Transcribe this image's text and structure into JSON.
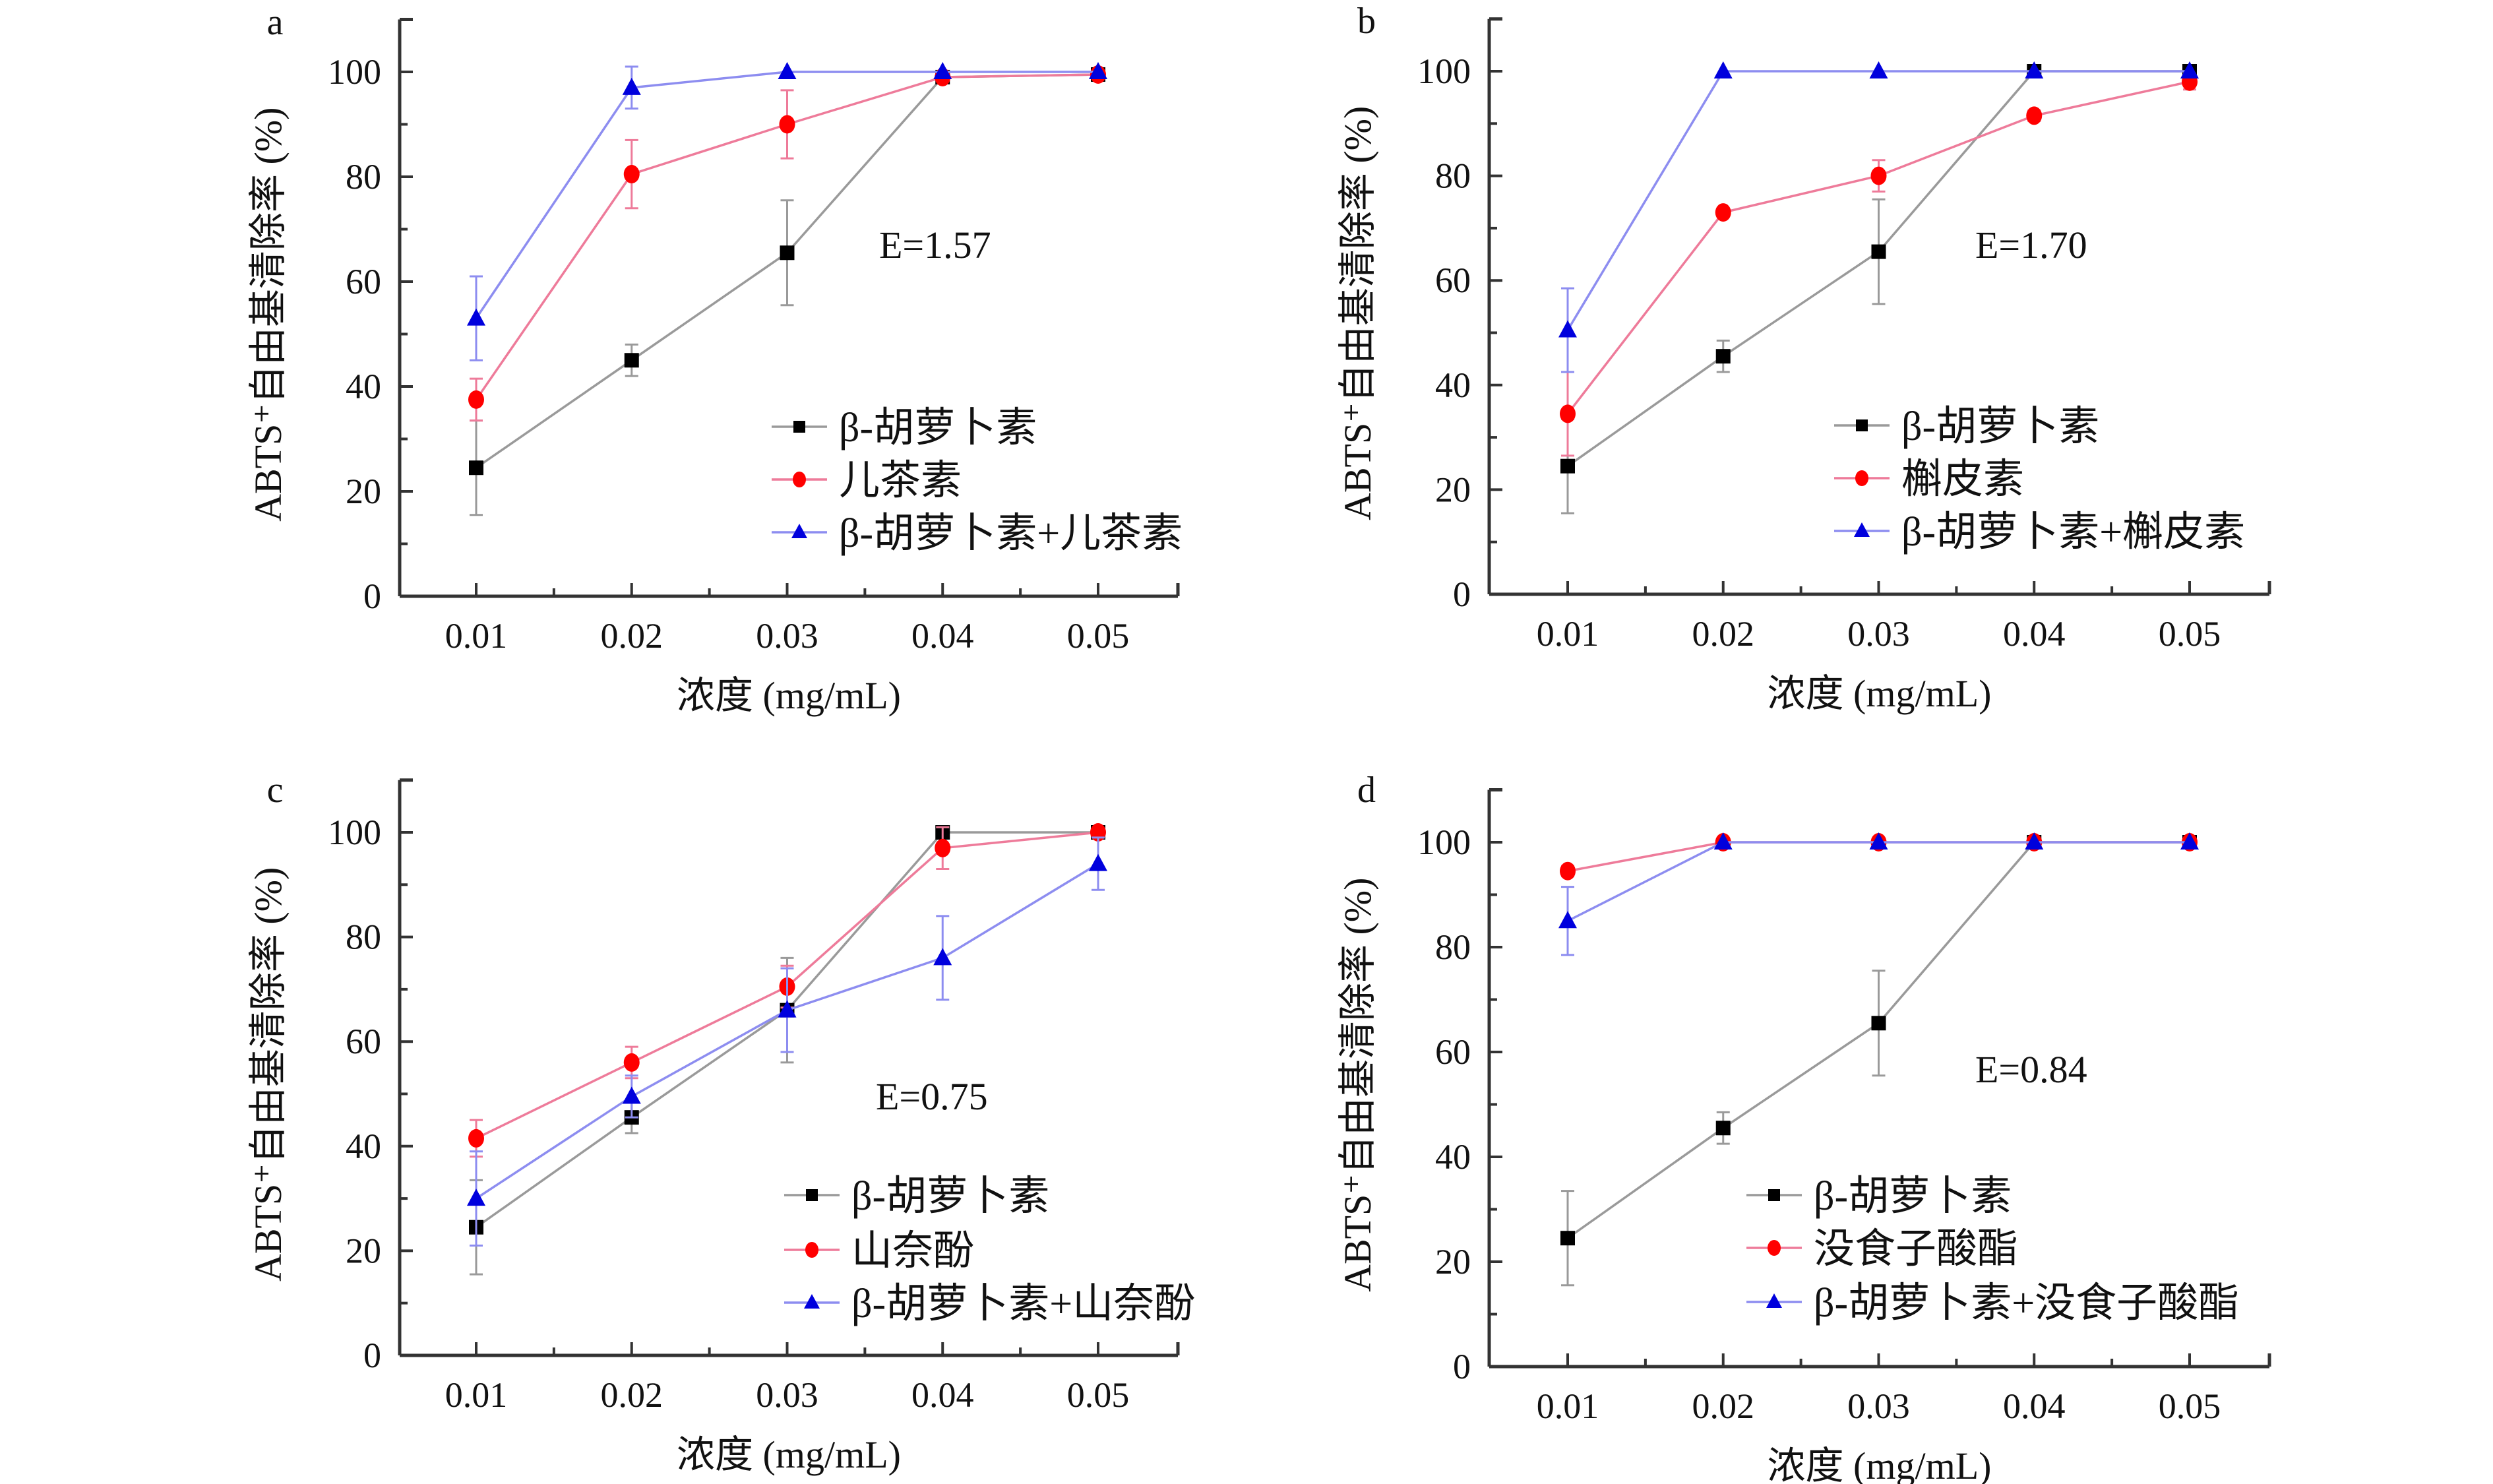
{
  "chart_data": [
    {
      "type": "line",
      "panel_label": "a",
      "annotation": "E=1.57",
      "xlabel": "浓度 (mg/mL)",
      "ylabel": "ABTS⁺自由基清除率 (%)",
      "x": [
        "0.01",
        "0.02",
        "0.03",
        "0.04",
        "0.05"
      ],
      "yticks": [
        "0",
        "20",
        "40",
        "60",
        "80",
        "100"
      ],
      "ylim": [
        0,
        110
      ],
      "legend_position": "bottom-right",
      "series": [
        {
          "name": "β-胡萝卜素",
          "color": "#000000",
          "marker": "square",
          "values": [
            24.5,
            45,
            65.5,
            99,
            99.5
          ],
          "error": [
            9,
            3,
            10,
            1,
            0.5
          ]
        },
        {
          "name": "儿茶素",
          "color": "#ff0000",
          "marker": "circle",
          "values": [
            37.5,
            80.5,
            90,
            99,
            99.5
          ],
          "error": [
            4,
            6.5,
            6.5,
            0.5,
            0.5
          ]
        },
        {
          "name": "β-胡萝卜素+儿茶素",
          "color": "#0000dd",
          "marker": "triangle",
          "values": [
            53,
            97,
            100,
            100,
            100
          ],
          "error": [
            8,
            4,
            0,
            0,
            0
          ]
        }
      ]
    },
    {
      "type": "line",
      "panel_label": "b",
      "annotation": "E=1.70",
      "xlabel": "浓度 (mg/mL)",
      "ylabel": "ABTS⁺自由基清除率 (%)",
      "x": [
        "0.01",
        "0.02",
        "0.03",
        "0.04",
        "0.05"
      ],
      "yticks": [
        "0",
        "20",
        "40",
        "60",
        "80",
        "100"
      ],
      "ylim": [
        0,
        110
      ],
      "legend_position": "bottom-right",
      "series": [
        {
          "name": "β-胡萝卜素",
          "color": "#000000",
          "marker": "square",
          "values": [
            24.5,
            45.5,
            65.5,
            100,
            100
          ],
          "error": [
            9,
            3,
            10,
            0.5,
            0.5
          ]
        },
        {
          "name": "槲皮素",
          "color": "#ff0000",
          "marker": "circle",
          "values": [
            34.5,
            73,
            80,
            91.5,
            98
          ],
          "error": [
            8,
            0.5,
            3,
            1,
            1.5
          ]
        },
        {
          "name": "β-胡萝卜素+槲皮素",
          "color": "#0000dd",
          "marker": "triangle",
          "values": [
            50.5,
            100,
            100,
            100,
            100
          ],
          "error": [
            8,
            0,
            0,
            0,
            0
          ]
        }
      ]
    },
    {
      "type": "line",
      "panel_label": "c",
      "annotation": "E=0.75",
      "xlabel": "浓度 (mg/mL)",
      "ylabel": "ABTS⁺自由基清除率 (%)",
      "x": [
        "0.01",
        "0.02",
        "0.03",
        "0.04",
        "0.05"
      ],
      "yticks": [
        "0",
        "20",
        "40",
        "60",
        "80",
        "100"
      ],
      "ylim": [
        0,
        110
      ],
      "legend_position": "bottom-right",
      "series": [
        {
          "name": "β-胡萝卜素",
          "color": "#000000",
          "marker": "square",
          "values": [
            24.5,
            45.5,
            66,
            100,
            100
          ],
          "error": [
            9,
            3,
            10,
            0.5,
            0.5
          ]
        },
        {
          "name": "山奈酚",
          "color": "#ff0000",
          "marker": "circle",
          "values": [
            41.5,
            56,
            70.5,
            97,
            100
          ],
          "error": [
            3.5,
            3,
            4,
            4,
            0.5
          ]
        },
        {
          "name": "β-胡萝卜素+山奈酚",
          "color": "#0000dd",
          "marker": "triangle",
          "values": [
            30,
            49.5,
            66,
            76,
            94
          ],
          "error": [
            9,
            4,
            8,
            8,
            5
          ]
        }
      ]
    },
    {
      "type": "line",
      "panel_label": "d",
      "annotation": "E=0.84",
      "xlabel": "浓度 (mg/mL)",
      "ylabel": "ABTS⁺自由基清除率 (%)",
      "x": [
        "0.01",
        "0.02",
        "0.03",
        "0.04",
        "0.05"
      ],
      "yticks": [
        "0",
        "20",
        "40",
        "60",
        "80",
        "100"
      ],
      "ylim": [
        0,
        110
      ],
      "legend_position": "bottom-right",
      "series": [
        {
          "name": "β-胡萝卜素",
          "color": "#000000",
          "marker": "square",
          "values": [
            24.5,
            45.5,
            65.5,
            100,
            100
          ],
          "error": [
            9,
            3,
            10,
            0.5,
            0.5
          ]
        },
        {
          "name": "没食子酸酯",
          "color": "#ff0000",
          "marker": "circle",
          "values": [
            94.5,
            100,
            100,
            100,
            100
          ],
          "error": [
            1,
            0,
            0,
            0,
            0
          ]
        },
        {
          "name": "β-胡萝卜素+没食子酸酯",
          "color": "#0000dd",
          "marker": "triangle",
          "values": [
            85,
            100,
            100,
            100,
            100
          ],
          "error": [
            6.5,
            0,
            0,
            0,
            0
          ]
        }
      ]
    }
  ]
}
